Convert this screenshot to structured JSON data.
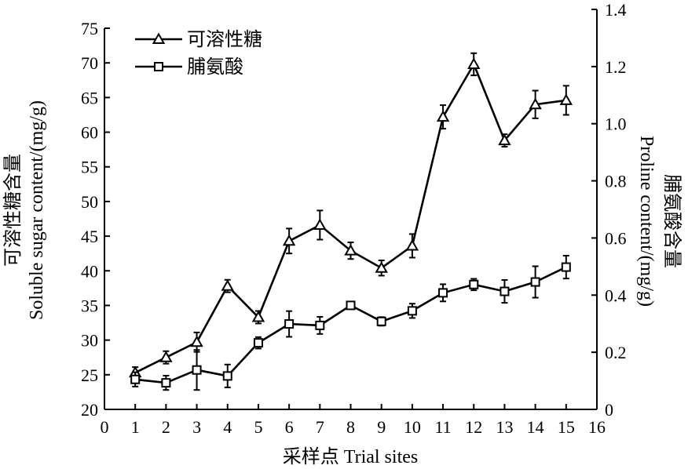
{
  "chart_data": {
    "type": "line",
    "xlabel": "采样点 Trial sites",
    "ylabel_left": [
      "可溶性糖含量",
      "Soluble sugar content/(mg/g)"
    ],
    "ylabel_right": [
      "脯氨酸含量",
      "Proline content/(mg/g)"
    ],
    "x": [
      1,
      2,
      3,
      4,
      5,
      6,
      7,
      8,
      9,
      10,
      11,
      12,
      13,
      14,
      15
    ],
    "xlim": [
      0,
      16
    ],
    "xticks": [
      "0",
      "1",
      "2",
      "3",
      "4",
      "5",
      "6",
      "7",
      "8",
      "9",
      "10",
      "11",
      "12",
      "13",
      "14",
      "15",
      "16"
    ],
    "ylim_left": [
      20,
      75
    ],
    "yticks_left": [
      "20",
      "25",
      "30",
      "35",
      "40",
      "45",
      "50",
      "55",
      "60",
      "65",
      "70",
      "75"
    ],
    "ylim_right": [
      0,
      1.4
    ],
    "yticks_right": [
      "0",
      "0.2",
      "0.4",
      "0.6",
      "0.8",
      "1.0",
      "1.2",
      "1.4"
    ],
    "grid": false,
    "legend": "top-left",
    "series": [
      {
        "name": "可溶性糖",
        "axis": "left",
        "marker": "triangle",
        "values": [
          25.3,
          27.5,
          29.7,
          37.8,
          33.3,
          44.3,
          46.6,
          42.9,
          40.4,
          43.6,
          62.2,
          69.8,
          58.8,
          64.0,
          64.6
        ],
        "errors": [
          0.8,
          0.9,
          1.4,
          0.9,
          0.9,
          1.8,
          2.1,
          1.2,
          1.1,
          1.7,
          1.7,
          1.6,
          0.9,
          2.0,
          2.1
        ]
      },
      {
        "name": "脯氨酸",
        "axis": "right",
        "marker": "square",
        "values": [
          0.105,
          0.093,
          0.138,
          0.117,
          0.233,
          0.299,
          0.294,
          0.364,
          0.308,
          0.345,
          0.408,
          0.437,
          0.413,
          0.446,
          0.498
        ],
        "errors": [
          0.025,
          0.025,
          0.07,
          0.04,
          0.02,
          0.045,
          0.03,
          0.01,
          0.015,
          0.025,
          0.03,
          0.02,
          0.04,
          0.055,
          0.04
        ]
      }
    ]
  }
}
